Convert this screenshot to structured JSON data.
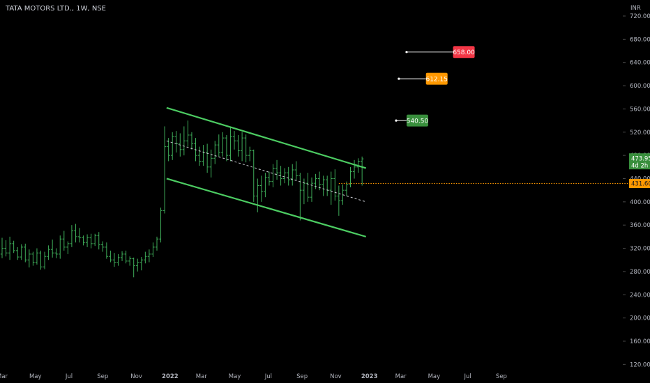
{
  "header": {
    "title": "TATA MOTORS LTD., 1W, NSE"
  },
  "chart_data": {
    "type": "ohlc",
    "currency_label": "INR",
    "ylim": [
      112,
      738
    ],
    "yticks": [
      120,
      160,
      200,
      240,
      280,
      320,
      360,
      400,
      440,
      480,
      520,
      560,
      600,
      640,
      680,
      720
    ],
    "ytick_labels": [
      "120.00",
      "160.00",
      "200.00",
      "240.00",
      "280.00",
      "320.00",
      "360.00",
      "400.00",
      "440.00",
      "480.00",
      "520.00",
      "560.00",
      "600.00",
      "640.00",
      "680.00",
      "720.00"
    ],
    "x_labels": [
      {
        "label": "Mar",
        "week": 0
      },
      {
        "label": "May",
        "week": 8.6
      },
      {
        "label": "Jul",
        "week": 17.3
      },
      {
        "label": "Sep",
        "week": 26
      },
      {
        "label": "Nov",
        "week": 34.7
      },
      {
        "label": "2022",
        "week": 43.4
      },
      {
        "label": "Mar",
        "week": 51.5
      },
      {
        "label": "May",
        "week": 60.1
      },
      {
        "label": "Jul",
        "week": 68.8
      },
      {
        "label": "Sep",
        "week": 77.5
      },
      {
        "label": "Nov",
        "week": 86.2
      },
      {
        "label": "2023",
        "week": 94.9
      },
      {
        "label": "Mar",
        "week": 103.0
      },
      {
        "label": "May",
        "week": 111.6
      },
      {
        "label": "Jul",
        "week": 120.3
      },
      {
        "label": "Sep",
        "week": 129.0
      }
    ],
    "bars": [
      [
        310,
        338,
        303,
        320
      ],
      [
        320,
        334,
        306,
        312
      ],
      [
        312,
        340,
        300,
        328
      ],
      [
        328,
        333,
        312,
        316
      ],
      [
        316,
        322,
        300,
        305
      ],
      [
        305,
        327,
        300,
        322
      ],
      [
        322,
        328,
        296,
        300
      ],
      [
        300,
        318,
        287,
        310
      ],
      [
        310,
        314,
        290,
        296
      ],
      [
        296,
        320,
        292,
        312
      ],
      [
        312,
        316,
        283,
        288
      ],
      [
        288,
        314,
        284,
        306
      ],
      [
        306,
        325,
        300,
        318
      ],
      [
        318,
        335,
        304,
        312
      ],
      [
        312,
        320,
        303,
        310
      ],
      [
        310,
        342,
        302,
        336
      ],
      [
        336,
        350,
        316,
        322
      ],
      [
        322,
        332,
        310,
        328
      ],
      [
        328,
        360,
        322,
        350
      ],
      [
        350,
        362,
        330,
        340
      ],
      [
        340,
        355,
        330,
        338
      ],
      [
        338,
        342,
        325,
        330
      ],
      [
        330,
        344,
        322,
        338
      ],
      [
        338,
        345,
        320,
        328
      ],
      [
        328,
        345,
        324,
        342
      ],
      [
        342,
        348,
        318,
        326
      ],
      [
        326,
        332,
        314,
        322
      ],
      [
        322,
        330,
        302,
        306
      ],
      [
        306,
        316,
        296,
        300
      ],
      [
        300,
        312,
        288,
        296
      ],
      [
        296,
        310,
        290,
        304
      ],
      [
        304,
        315,
        298,
        310
      ],
      [
        310,
        316,
        294,
        298
      ],
      [
        298,
        306,
        290,
        302
      ],
      [
        302,
        304,
        270,
        290
      ],
      [
        290,
        302,
        280,
        296
      ],
      [
        296,
        305,
        282,
        300
      ],
      [
        300,
        314,
        294,
        306
      ],
      [
        306,
        318,
        296,
        310
      ],
      [
        310,
        330,
        305,
        322
      ],
      [
        322,
        340,
        316,
        336
      ],
      [
        336,
        390,
        330,
        385
      ],
      [
        385,
        530,
        380,
        495
      ],
      [
        495,
        510,
        470,
        480
      ],
      [
        480,
        520,
        472,
        512
      ],
      [
        512,
        522,
        485,
        500
      ],
      [
        500,
        518,
        478,
        490
      ],
      [
        490,
        530,
        480,
        505
      ],
      [
        505,
        540,
        495,
        515
      ],
      [
        515,
        520,
        490,
        500
      ],
      [
        500,
        510,
        470,
        480
      ],
      [
        480,
        495,
        462,
        470
      ],
      [
        470,
        498,
        462,
        485
      ],
      [
        485,
        500,
        450,
        460
      ],
      [
        460,
        490,
        442,
        475
      ],
      [
        475,
        505,
        465,
        498
      ],
      [
        498,
        516,
        478,
        485
      ],
      [
        485,
        520,
        478,
        510
      ],
      [
        510,
        515,
        470,
        480
      ],
      [
        480,
        530,
        470,
        512
      ],
      [
        512,
        522,
        490,
        505
      ],
      [
        505,
        515,
        478,
        488
      ],
      [
        488,
        520,
        470,
        510
      ],
      [
        510,
        516,
        468,
        480
      ],
      [
        480,
        495,
        470,
        488
      ],
      [
        488,
        490,
        400,
        410
      ],
      [
        410,
        440,
        382,
        428
      ],
      [
        428,
        445,
        400,
        418
      ],
      [
        418,
        450,
        408,
        442
      ],
      [
        442,
        452,
        428,
        435
      ],
      [
        435,
        465,
        425,
        458
      ],
      [
        458,
        472,
        438,
        450
      ],
      [
        450,
        462,
        428,
        440
      ],
      [
        440,
        458,
        432,
        450
      ],
      [
        450,
        460,
        428,
        438
      ],
      [
        438,
        465,
        428,
        455
      ],
      [
        455,
        470,
        438,
        445
      ],
      [
        445,
        450,
        368,
        420
      ],
      [
        420,
        440,
        396,
        432
      ],
      [
        432,
        450,
        400,
        408
      ],
      [
        408,
        442,
        400,
        432
      ],
      [
        432,
        448,
        422,
        440
      ],
      [
        440,
        452,
        420,
        430
      ],
      [
        430,
        445,
        410,
        438
      ],
      [
        438,
        445,
        410,
        420
      ],
      [
        420,
        452,
        395,
        440
      ],
      [
        440,
        456,
        402,
        410
      ],
      [
        410,
        428,
        376,
        402
      ],
      [
        402,
        430,
        395,
        420
      ],
      [
        420,
        435,
        410,
        430
      ],
      [
        430,
        460,
        425,
        452
      ],
      [
        452,
        472,
        440,
        460
      ],
      [
        460,
        475,
        450,
        470
      ],
      [
        470,
        478,
        428,
        474
      ]
    ],
    "channel_upper": [
      [
        42.5,
        562
      ],
      [
        94,
        458
      ]
    ],
    "channel_lower": [
      [
        42.5,
        440
      ],
      [
        94,
        340
      ]
    ],
    "channel_mid": [
      [
        42.5,
        505
      ],
      [
        94,
        400
      ]
    ],
    "targets": [
      {
        "label": "658.00",
        "value": 658,
        "color": "#f23645",
        "line_from_week": 104.5,
        "week": 116.5
      },
      {
        "label": "612.15",
        "value": 612,
        "color": "#ff9800",
        "line_from_week": 102.5,
        "week": 109.5
      },
      {
        "label": "540.50",
        "value": 540,
        "color": "#388e3c",
        "line_from_week": 101.8,
        "week": 104.5
      }
    ],
    "last_price": {
      "label": "473.95",
      "countdown": "4d 2h",
      "value": 473.95,
      "color": "#388e3c"
    },
    "support_line": {
      "label": "431.60",
      "value": 431.6,
      "color": "#ff9800",
      "from_week": 87
    },
    "colors": {
      "bar": "#3fae5a",
      "channel": "#4ccc62",
      "midline": "#cfd2d8",
      "axis_text": "#b2b5be",
      "label_text": "#ffffff"
    }
  }
}
